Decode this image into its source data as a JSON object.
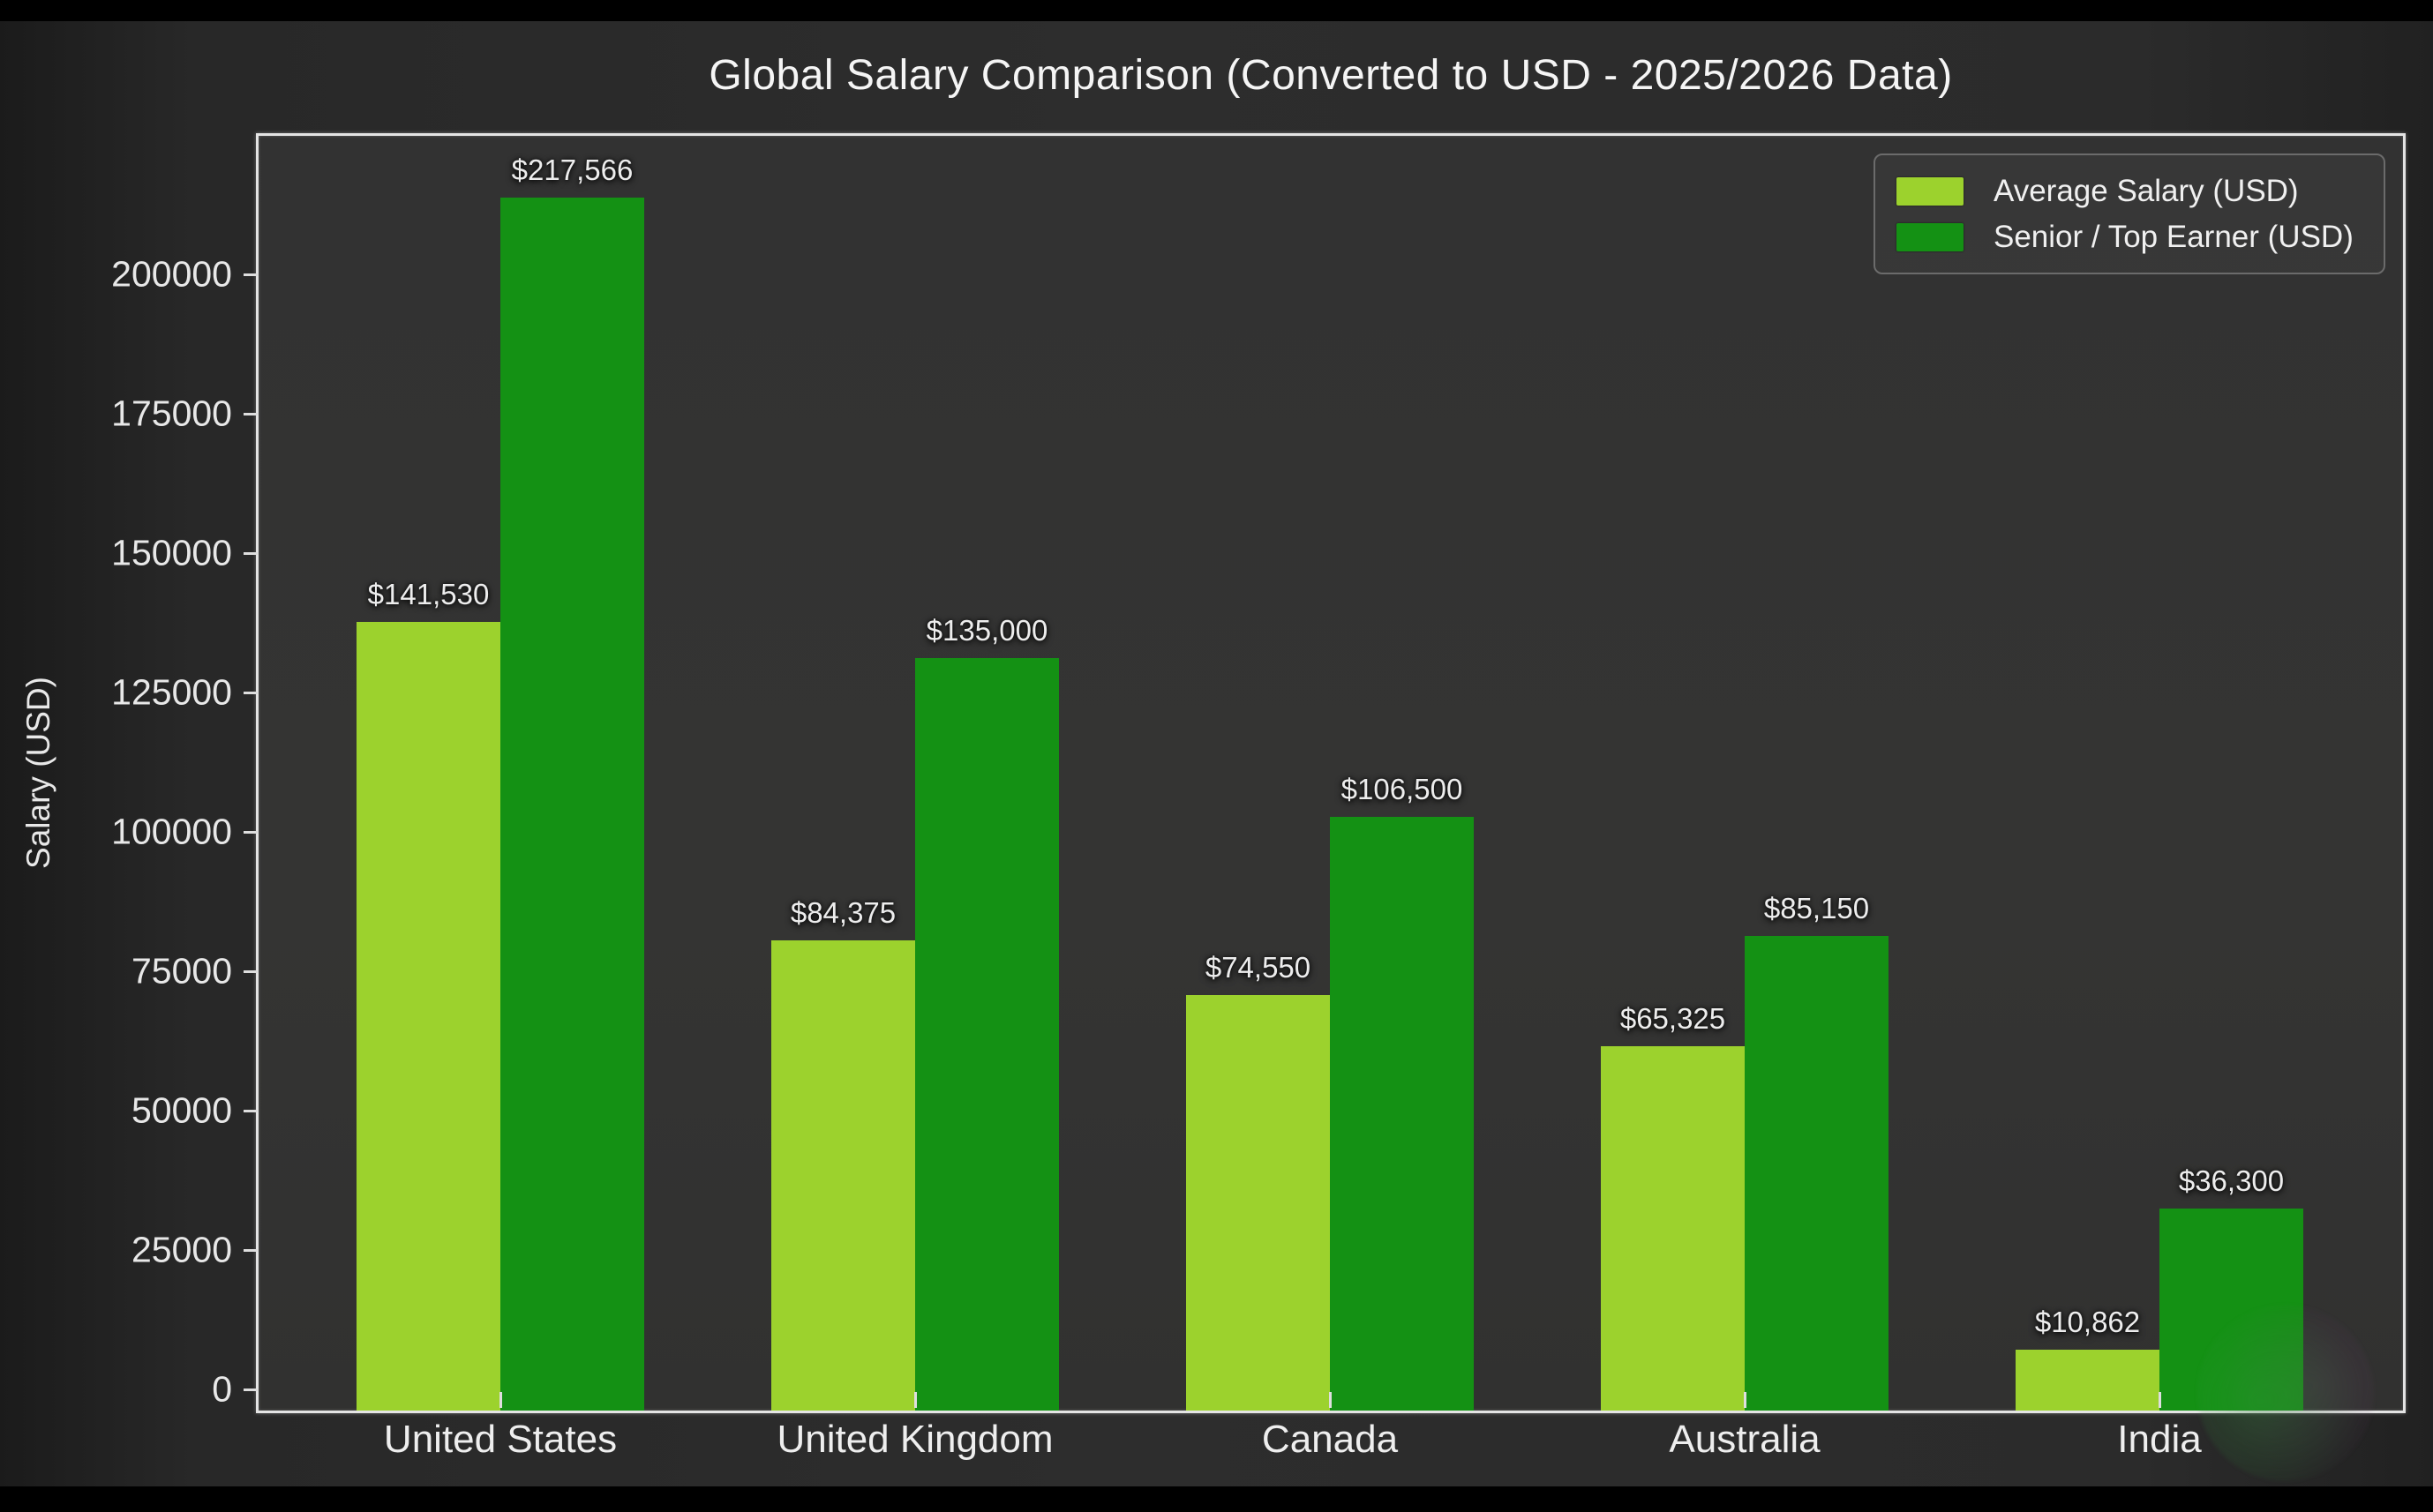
{
  "title": "Global Salary Comparison (Converted to USD - 2025/2026 Data)",
  "chart_data": {
    "type": "bar",
    "title": "Global Salary Comparison (Converted to USD - 2025/2026 Data)",
    "xlabel": "",
    "ylabel": "Salary (USD)",
    "categories": [
      "United States",
      "United Kingdom",
      "Canada",
      "Australia",
      "India"
    ],
    "series": [
      {
        "name": "Average Salary (USD)",
        "color": "#9cd22d",
        "values": [
          141530,
          84375,
          74550,
          65325,
          10862
        ],
        "data_labels": [
          "$141,530",
          "$84,375",
          "$74,550",
          "$65,325",
          "$10,862"
        ]
      },
      {
        "name": "Senior / Top Earner (USD)",
        "color": "#149114",
        "values": [
          217566,
          135000,
          106500,
          85150,
          36300
        ],
        "data_labels": [
          "$217,566",
          "$135,000",
          "$106,500",
          "$85,150",
          "$36,300"
        ]
      }
    ],
    "y_ticks": [
      0,
      25000,
      50000,
      75000,
      100000,
      125000,
      150000,
      175000,
      200000
    ],
    "ylim": [
      0,
      228700
    ],
    "grid": false,
    "legend_position": "top-right",
    "theme": {
      "figure_background": "#2b2b2b",
      "plot_background": "#333332",
      "spine_color": "#e4e4e4",
      "text_color": "#ededed"
    }
  }
}
